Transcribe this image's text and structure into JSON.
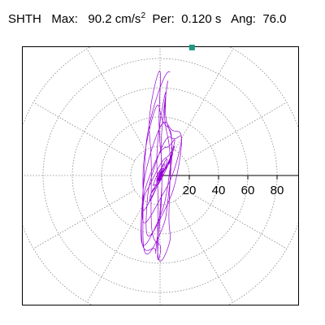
{
  "title": {
    "component": "SHTH",
    "max_label": "Max:",
    "max_value": "90.2",
    "max_unit": "cm/s",
    "max_unit_exp": "2",
    "per_label": "Per:",
    "per_value": "0.120 s",
    "ang_label": "Ang:",
    "ang_value": "76.0"
  },
  "chart_data": {
    "type": "scatter",
    "subtype": "polar-orbit",
    "radial_ticks": [
      20,
      40,
      60,
      80
    ],
    "radial_max": 100,
    "angular_grid_step_deg": 30,
    "grid": true,
    "max_point": {
      "value": 90.2,
      "angle_deg": 76.0
    },
    "colors": {
      "orbit": "#9400d3",
      "marker": "#1a9a80",
      "grid": "#888888",
      "axis": "#000000"
    }
  }
}
